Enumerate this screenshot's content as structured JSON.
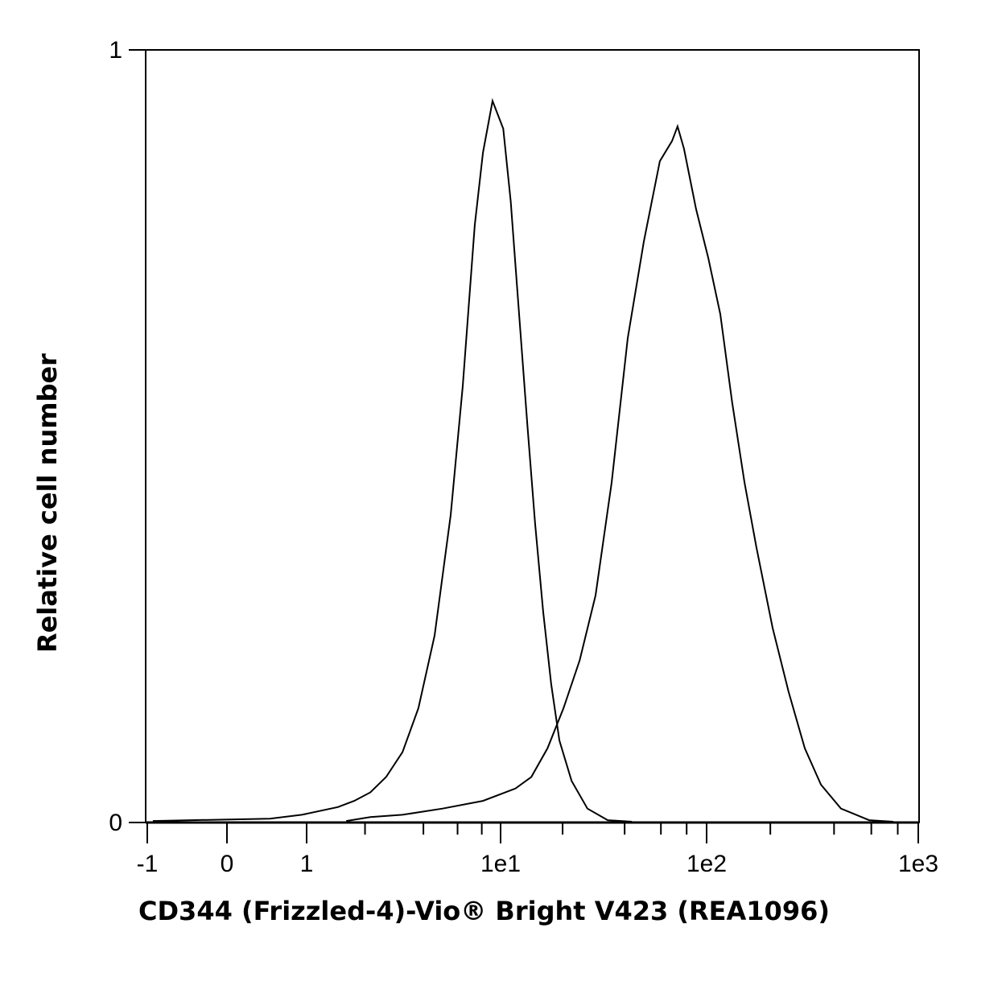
{
  "chart_data": {
    "type": "line",
    "title": "",
    "xlabel": "CD344 (Frizzled-4)-Vio® Bright V423 (REA1096)",
    "ylabel": "Relative cell number",
    "x_scale": "hybrid-log",
    "x_ticks": [
      {
        "value": -1,
        "label": "-1"
      },
      {
        "value": 0,
        "label": "0"
      },
      {
        "value": 1,
        "label": "1"
      },
      {
        "value": 10,
        "label": "1e1"
      },
      {
        "value": 100,
        "label": "1e2"
      },
      {
        "value": 1000,
        "label": "1e3"
      }
    ],
    "y_ticks": [
      {
        "value": 0,
        "label": "0"
      },
      {
        "value": 1,
        "label": "1"
      }
    ],
    "xlim": [
      -1,
      1000
    ],
    "ylim": [
      0,
      1
    ],
    "grid": false,
    "line_color": "#000000",
    "series": [
      {
        "x": [
          -0.93,
          0.54,
          0.94,
          1.45,
          1.76,
          2.13,
          2.57,
          3.12,
          3.77,
          4.57,
          5.53,
          6.38,
          7.36,
          8.11,
          9.09,
          10.3,
          11.2,
          12.3,
          13.5,
          14.7,
          16.1,
          17.6,
          19.3,
          22.1,
          26.4,
          33.1,
          43.4
        ],
        "y": [
          0.002,
          0.005,
          0.01,
          0.02,
          0.028,
          0.039,
          0.059,
          0.091,
          0.148,
          0.242,
          0.398,
          0.565,
          0.773,
          0.867,
          0.934,
          0.898,
          0.804,
          0.658,
          0.513,
          0.388,
          0.273,
          0.179,
          0.106,
          0.054,
          0.018,
          0.003,
          0.001
        ]
      },
      {
        "x": [
          1.6,
          2.13,
          3.12,
          5.02,
          8.11,
          11.8,
          14.1,
          16.9,
          20.2,
          24.2,
          28.9,
          34.6,
          41.4,
          49.6,
          59.3,
          67.9,
          72.3,
          77.7,
          88.9,
          101.8,
          116,
          132,
          151,
          172,
          205,
          244,
          291,
          347,
          431,
          586,
          762
        ],
        "y": [
          0.002,
          0.007,
          0.01,
          0.018,
          0.028,
          0.044,
          0.059,
          0.096,
          0.148,
          0.21,
          0.294,
          0.44,
          0.627,
          0.752,
          0.856,
          0.882,
          0.901,
          0.872,
          0.794,
          0.731,
          0.658,
          0.544,
          0.44,
          0.356,
          0.252,
          0.169,
          0.096,
          0.049,
          0.018,
          0.003,
          0.001
        ]
      }
    ]
  }
}
